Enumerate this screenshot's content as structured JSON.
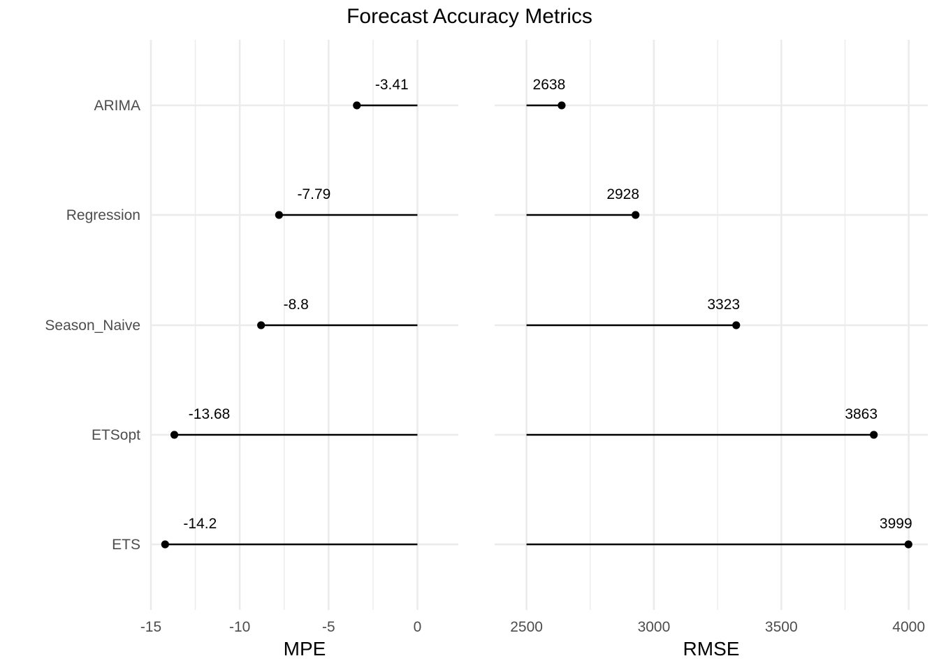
{
  "chart_data": {
    "type": "lollipop",
    "title": "Forecast Accuracy Metrics",
    "categories": [
      "ARIMA",
      "Regression",
      "Season_Naive",
      "ETSopt",
      "ETS"
    ],
    "panels": [
      {
        "name": "MPE",
        "xlabel": "MPE",
        "baseline": 0,
        "xlim": [
          -15,
          2.3
        ],
        "ticks": [
          -15,
          -10,
          -5,
          0
        ],
        "tick_labels": [
          "-15",
          "-10",
          "-5",
          "0"
        ],
        "values": [
          -3.41,
          -7.79,
          -8.8,
          -13.68,
          -14.2
        ],
        "value_labels": [
          "-3.41",
          "-7.79",
          "-8.8",
          "-13.68",
          "-14.2"
        ]
      },
      {
        "name": "RMSE",
        "xlabel": "RMSE",
        "baseline": 2500,
        "xlim": [
          2375,
          4075
        ],
        "ticks": [
          2500,
          3000,
          3500,
          4000
        ],
        "tick_labels": [
          "2500",
          "3000",
          "3500",
          "4000"
        ],
        "values": [
          2638,
          2928,
          3323,
          3863,
          3999
        ],
        "value_labels": [
          "2638",
          "2928",
          "3323",
          "3863",
          "3999"
        ]
      }
    ],
    "grid": true,
    "legend": "none"
  }
}
